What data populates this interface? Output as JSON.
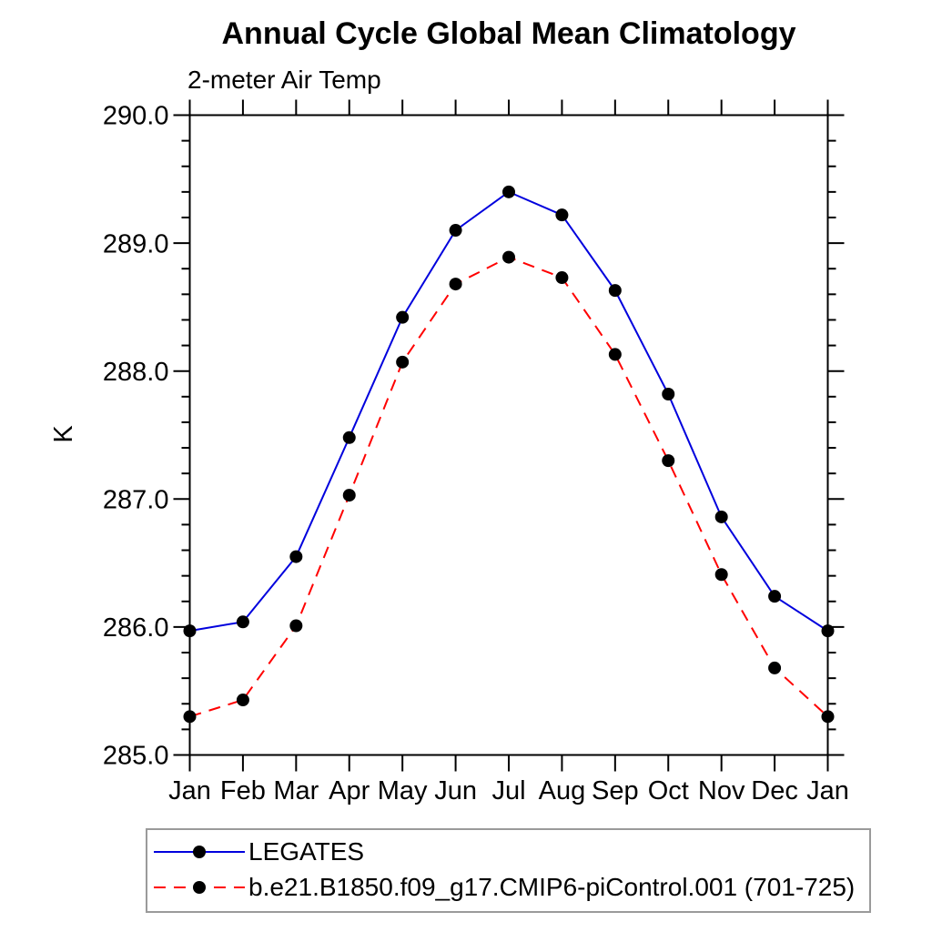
{
  "header": {
    "title": "Annual Cycle Global Mean Climatology",
    "subtitle": "2-meter Air Temp"
  },
  "chart_data": {
    "type": "line",
    "categories": [
      "Jan",
      "Feb",
      "Mar",
      "Apr",
      "May",
      "Jun",
      "Jul",
      "Aug",
      "Sep",
      "Oct",
      "Nov",
      "Dec",
      "Jan"
    ],
    "series": [
      {
        "name": "LEGATES",
        "color": "#0000dd",
        "line_style": "solid",
        "marker": "filled-circle",
        "marker_color": "#000000",
        "values": [
          285.97,
          286.04,
          286.55,
          287.48,
          288.42,
          289.1,
          289.4,
          289.22,
          288.63,
          287.82,
          286.86,
          286.24,
          285.97
        ]
      },
      {
        "name": "b.e21.B1850.f09_g17.CMIP6-piControl.001 (701-725)",
        "color": "#ff0000",
        "line_style": "dashed",
        "marker": "filled-circle",
        "marker_color": "#000000",
        "values": [
          285.3,
          285.43,
          286.01,
          287.03,
          288.07,
          288.68,
          288.89,
          288.73,
          288.13,
          287.3,
          286.41,
          285.68,
          285.3
        ]
      }
    ],
    "xlabel": "",
    "ylabel": "K",
    "ylim": [
      285.0,
      290.0
    ],
    "ytick_interval": 1.0,
    "ytick_minor_interval": 0.2,
    "ytick_labels": [
      "285.0",
      "286.0",
      "287.0",
      "288.0",
      "289.0",
      "290.0"
    ],
    "grid": false,
    "legend_position": "bottom-left-box",
    "axis_color": "#000000"
  }
}
